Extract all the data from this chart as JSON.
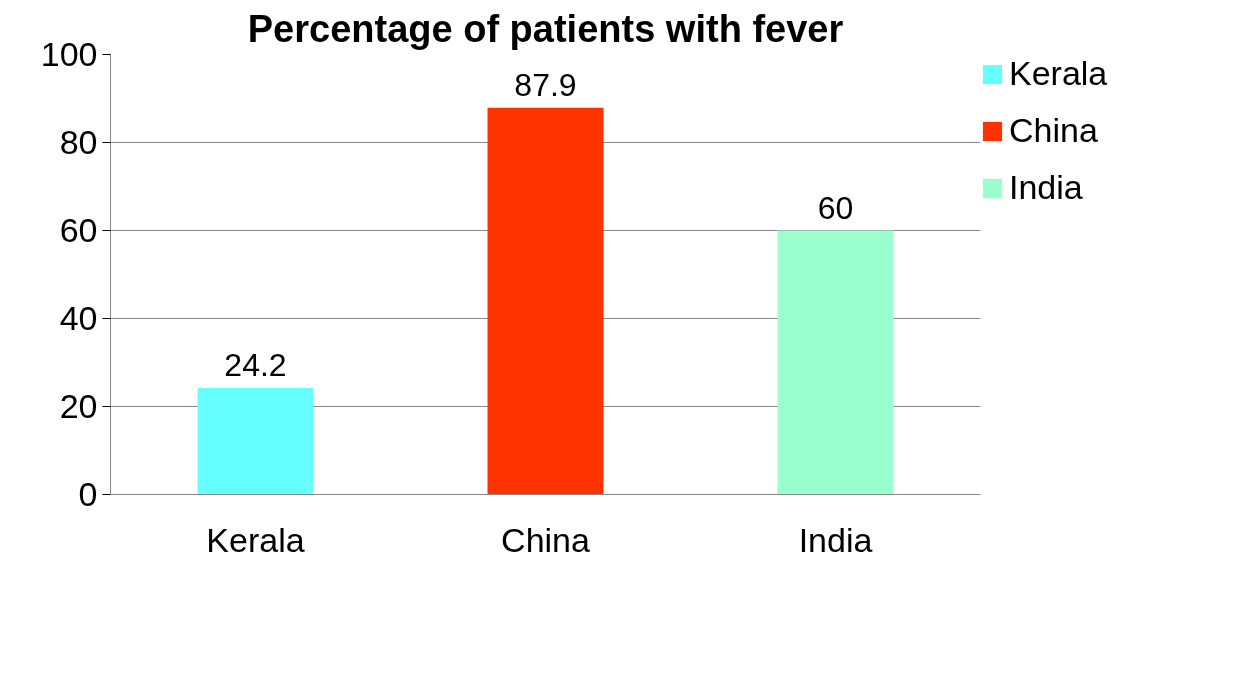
{
  "chart_data": {
    "type": "bar",
    "title": "Percentage of patients with fever",
    "categories": [
      "Kerala",
      "China",
      "India"
    ],
    "series": [
      {
        "name": "Kerala",
        "color": "#66ffff",
        "values": [
          24.2,
          null,
          null
        ]
      },
      {
        "name": "China",
        "color": "#ff3300",
        "values": [
          null,
          87.9,
          null
        ]
      },
      {
        "name": "India",
        "color": "#99ffcc",
        "values": [
          null,
          null,
          60
        ]
      }
    ],
    "ylim": [
      0,
      100
    ],
    "yticks": [
      0,
      20,
      40,
      60,
      80,
      100
    ],
    "grid": "y",
    "legend": "right",
    "data_labels": true
  }
}
